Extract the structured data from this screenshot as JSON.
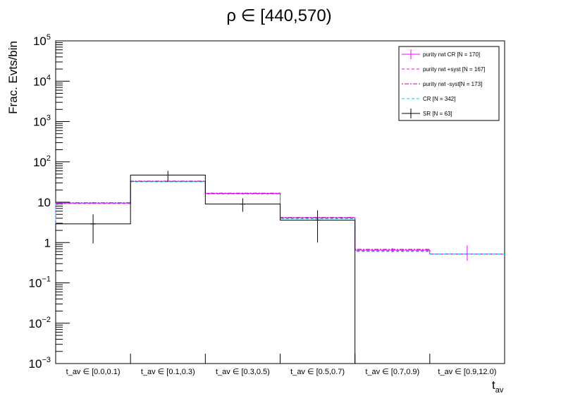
{
  "chart_data": {
    "type": "step-histogram",
    "title": "ρ ∈ [440,570)",
    "xlabel": "t_av",
    "ylabel": "Frac. Evts/bin",
    "yscale": "log",
    "ylim": [
      0.001,
      100000
    ],
    "grid": false,
    "legend_position": "top-right",
    "categories": [
      "t_av ∈ [0.0,0.1)",
      "t_av ∈ [0.1,0.3)",
      "t_av ∈ [0.3,0.5)",
      "t_av ∈ [0.5,0.7)",
      "t_av ∈ [0.7,0.9)",
      "t_av ∈ [0.9,12.0)"
    ],
    "yticks": [
      {
        "value": 0.001,
        "base": "10",
        "exp": "−3"
      },
      {
        "value": 0.01,
        "base": "10",
        "exp": "−2"
      },
      {
        "value": 0.1,
        "base": "10",
        "exp": "−1"
      },
      {
        "value": 1,
        "base": "1",
        "exp": ""
      },
      {
        "value": 10,
        "base": "10",
        "exp": ""
      },
      {
        "value": 100,
        "base": "10",
        "exp": "2"
      },
      {
        "value": 1000,
        "base": "10",
        "exp": "3"
      },
      {
        "value": 10000,
        "base": "10",
        "exp": "4"
      },
      {
        "value": 100000,
        "base": "10",
        "exp": "5"
      }
    ],
    "series": [
      {
        "name": "purity rwt CR [N = 170]",
        "color": "#ff00ff",
        "dash": "",
        "errors": true,
        "values": [
          9.5,
          33,
          16.5,
          4.1,
          0.65,
          0.52
        ],
        "err_low": [
          9.0,
          31.5,
          15.7,
          3.8,
          0.57,
          0.35
        ],
        "err_high": [
          10.0,
          34.5,
          17.3,
          4.4,
          0.73,
          0.85
        ]
      },
      {
        "name": "purity rwt +syst [N = 167]",
        "color": "#ff00ff",
        "dash": "4,3",
        "errors": false,
        "values": [
          9.3,
          32.5,
          16.2,
          4.0,
          0.62,
          0.52
        ]
      },
      {
        "name": "purity rwt -syst[N = 173]",
        "color": "#c000c0",
        "dash": "2,2,6,2",
        "errors": false,
        "values": [
          9.7,
          33.5,
          16.8,
          4.2,
          0.68,
          0.52
        ]
      },
      {
        "name": "CR [N = 342]",
        "color": "#00c8e0",
        "dash": "4,3",
        "errors": false,
        "values": [
          9.2,
          32,
          16,
          3.9,
          0.6,
          0.52
        ]
      },
      {
        "name": "SR [N = 63]",
        "color": "#000000",
        "dash": "",
        "errors": true,
        "values": [
          2.9,
          47,
          9.0,
          3.6,
          0,
          0
        ],
        "err_low": [
          0.95,
          33,
          5.8,
          1.0,
          0,
          0
        ],
        "err_high": [
          5.0,
          60,
          12.5,
          6.3,
          0,
          0
        ]
      }
    ]
  }
}
